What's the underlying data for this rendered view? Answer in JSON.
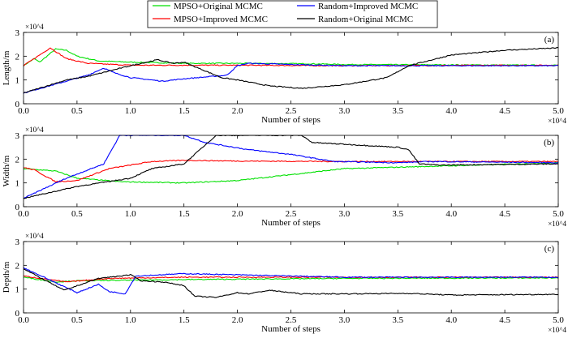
{
  "chart_data": [
    {
      "type": "line",
      "panel_label": "(a)",
      "ylabel": "Length/m",
      "xlabel": "Number of steps",
      "x_multiplier": "×10^4",
      "y_multiplier": "×10^4",
      "xlim": [
        0,
        5
      ],
      "ylim": [
        0,
        3
      ],
      "xticks": [
        "0.0",
        "0.5",
        "1.0",
        "1.5",
        "2.0",
        "2.5",
        "3.0",
        "3.5",
        "4.0",
        "4.5",
        "5.0"
      ],
      "yticks": [
        "0",
        "1",
        "2",
        "3"
      ],
      "series": [
        {
          "name": "MPSO+Original MCMC",
          "color": "#00e000",
          "points": [
            [
              0,
              1.6
            ],
            [
              0.1,
              1.9
            ],
            [
              0.15,
              1.75
            ],
            [
              0.3,
              2.3
            ],
            [
              0.4,
              2.25
            ],
            [
              0.5,
              2.0
            ],
            [
              0.7,
              1.8
            ],
            [
              1.0,
              1.75
            ],
            [
              1.5,
              1.7
            ],
            [
              2.0,
              1.7
            ],
            [
              2.7,
              1.68
            ],
            [
              3.0,
              1.65
            ],
            [
              5,
              1.62
            ]
          ]
        },
        {
          "name": "MPSO+Improved MCMC",
          "color": "#ff0000",
          "points": [
            [
              0,
              1.6
            ],
            [
              0.25,
              2.35
            ],
            [
              0.4,
              1.9
            ],
            [
              0.6,
              1.7
            ],
            [
              1.0,
              1.62
            ],
            [
              2.0,
              1.62
            ],
            [
              3,
              1.6
            ],
            [
              5,
              1.62
            ]
          ]
        },
        {
          "name": "Random+Improved MCMC",
          "color": "#0000ff",
          "points": [
            [
              0,
              0.45
            ],
            [
              0.6,
              1.2
            ],
            [
              0.75,
              1.5
            ],
            [
              0.85,
              1.3
            ],
            [
              1.0,
              1.1
            ],
            [
              1.3,
              0.95
            ],
            [
              1.5,
              1.05
            ],
            [
              1.9,
              1.2
            ],
            [
              2.0,
              1.6
            ],
            [
              2.1,
              1.7
            ],
            [
              2.5,
              1.65
            ],
            [
              3,
              1.6
            ],
            [
              5,
              1.6
            ]
          ]
        },
        {
          "name": "Random+Original MCMC",
          "color": "#000000",
          "points": [
            [
              0,
              0.45
            ],
            [
              0.4,
              1.0
            ],
            [
              0.6,
              1.15
            ],
            [
              1.0,
              1.6
            ],
            [
              1.25,
              1.85
            ],
            [
              1.4,
              1.7
            ],
            [
              1.5,
              1.75
            ],
            [
              1.85,
              1.1
            ],
            [
              2.0,
              1.0
            ],
            [
              2.3,
              0.75
            ],
            [
              2.6,
              0.65
            ],
            [
              3.0,
              0.8
            ],
            [
              3.4,
              1.1
            ],
            [
              3.6,
              1.6
            ],
            [
              4.0,
              2.05
            ],
            [
              4.5,
              2.25
            ],
            [
              5,
              2.35
            ]
          ]
        }
      ]
    },
    {
      "type": "line",
      "panel_label": "(b)",
      "ylabel": "Width/m",
      "xlabel": "Number of steps",
      "x_multiplier": "×10^4",
      "y_multiplier": "×10^4",
      "xlim": [
        0,
        5
      ],
      "ylim": [
        0,
        3
      ],
      "xticks": [
        "0.0",
        "0.5",
        "1.0",
        "1.5",
        "2.0",
        "2.5",
        "3.0",
        "3.5",
        "4.0",
        "4.5",
        "5.0"
      ],
      "yticks": [
        "0",
        "1",
        "2",
        "3"
      ],
      "series": [
        {
          "name": "MPSO+Original MCMC",
          "color": "#00e000",
          "points": [
            [
              0,
              1.6
            ],
            [
              0.3,
              1.5
            ],
            [
              0.5,
              1.2
            ],
            [
              0.9,
              1.05
            ],
            [
              1.5,
              1.0
            ],
            [
              2.0,
              1.1
            ],
            [
              2.5,
              1.35
            ],
            [
              3.0,
              1.6
            ],
            [
              4,
              1.72
            ],
            [
              5,
              1.85
            ]
          ]
        },
        {
          "name": "MPSO+Improved MCMC",
          "color": "#ff0000",
          "points": [
            [
              0,
              1.65
            ],
            [
              0.1,
              1.55
            ],
            [
              0.3,
              1.05
            ],
            [
              0.5,
              1.1
            ],
            [
              0.8,
              1.6
            ],
            [
              1.2,
              1.9
            ],
            [
              1.5,
              1.95
            ],
            [
              2,
              1.92
            ],
            [
              3,
              1.9
            ],
            [
              5,
              1.9
            ]
          ]
        },
        {
          "name": "Random+Improved MCMC",
          "color": "#0000ff",
          "points": [
            [
              0,
              0.35
            ],
            [
              0.4,
              1.2
            ],
            [
              0.75,
              1.8
            ],
            [
              0.9,
              3.0
            ],
            [
              1.5,
              3.0
            ],
            [
              1.7,
              2.7
            ],
            [
              2.1,
              2.4
            ],
            [
              2.5,
              2.2
            ],
            [
              2.9,
              1.9
            ],
            [
              3.5,
              1.85
            ],
            [
              3.8,
              1.9
            ],
            [
              5,
              1.85
            ]
          ]
        },
        {
          "name": "Random+Original MCMC",
          "color": "#000000",
          "points": [
            [
              0,
              0.35
            ],
            [
              0.5,
              0.85
            ],
            [
              1.0,
              1.2
            ],
            [
              1.2,
              1.6
            ],
            [
              1.5,
              1.8
            ],
            [
              1.8,
              3.0
            ],
            [
              2.6,
              3.0
            ],
            [
              2.7,
              2.7
            ],
            [
              3.5,
              2.5
            ],
            [
              3.6,
              2.4
            ],
            [
              3.7,
              1.8
            ],
            [
              3.9,
              1.75
            ],
            [
              5,
              1.8
            ]
          ]
        }
      ]
    },
    {
      "type": "line",
      "panel_label": "(c)",
      "ylabel": "Depth/m",
      "xlabel": "Number of steps",
      "x_multiplier": "×10^4",
      "y_multiplier": "×10^4",
      "xlim": [
        0,
        5
      ],
      "ylim": [
        0,
        3
      ],
      "xticks": [
        "0.0",
        "0.5",
        "1.0",
        "1.5",
        "2.0",
        "2.5",
        "3.0",
        "3.5",
        "4.0",
        "4.5",
        "5.0"
      ],
      "yticks": [
        "0",
        "1",
        "2",
        "3"
      ],
      "series": [
        {
          "name": "MPSO+Original MCMC",
          "color": "#00e000",
          "points": [
            [
              0,
              1.5
            ],
            [
              0.3,
              1.3
            ],
            [
              0.5,
              1.35
            ],
            [
              1.5,
              1.4
            ],
            [
              3,
              1.45
            ],
            [
              5,
              1.47
            ]
          ]
        },
        {
          "name": "MPSO+Improved MCMC",
          "color": "#ff0000",
          "points": [
            [
              0,
              1.55
            ],
            [
              0.4,
              1.3
            ],
            [
              0.8,
              1.45
            ],
            [
              1.5,
              1.5
            ],
            [
              3,
              1.5
            ],
            [
              5,
              1.5
            ]
          ]
        },
        {
          "name": "Random+Improved MCMC",
          "color": "#0000ff",
          "points": [
            [
              0,
              1.9
            ],
            [
              0.5,
              0.85
            ],
            [
              0.7,
              1.2
            ],
            [
              0.8,
              0.9
            ],
            [
              0.95,
              0.8
            ],
            [
              1.05,
              1.55
            ],
            [
              1.5,
              1.65
            ],
            [
              2.5,
              1.55
            ],
            [
              3,
              1.5
            ],
            [
              5,
              1.5
            ]
          ]
        },
        {
          "name": "Random+Original MCMC",
          "color": "#000000",
          "points": [
            [
              0,
              1.85
            ],
            [
              0.38,
              0.95
            ],
            [
              0.7,
              1.45
            ],
            [
              1.0,
              1.6
            ],
            [
              1.1,
              1.35
            ],
            [
              1.3,
              1.3
            ],
            [
              1.5,
              1.15
            ],
            [
              1.6,
              0.7
            ],
            [
              1.8,
              0.65
            ],
            [
              2.0,
              0.85
            ],
            [
              2.1,
              0.8
            ],
            [
              2.3,
              0.95
            ],
            [
              2.6,
              0.8
            ],
            [
              3,
              0.8
            ],
            [
              3.6,
              0.82
            ],
            [
              4,
              0.75
            ],
            [
              5,
              0.78
            ]
          ]
        }
      ]
    }
  ],
  "legend": {
    "placement": "top-center",
    "entries": [
      {
        "label": "MPSO+Original MCMC",
        "color": "#00e000"
      },
      {
        "label": "MPSO+Improved MCMC",
        "color": "#ff0000"
      },
      {
        "label": "Random+Improved MCMC",
        "color": "#0000ff"
      },
      {
        "label": "Random+Original MCMC",
        "color": "#000000"
      }
    ]
  }
}
